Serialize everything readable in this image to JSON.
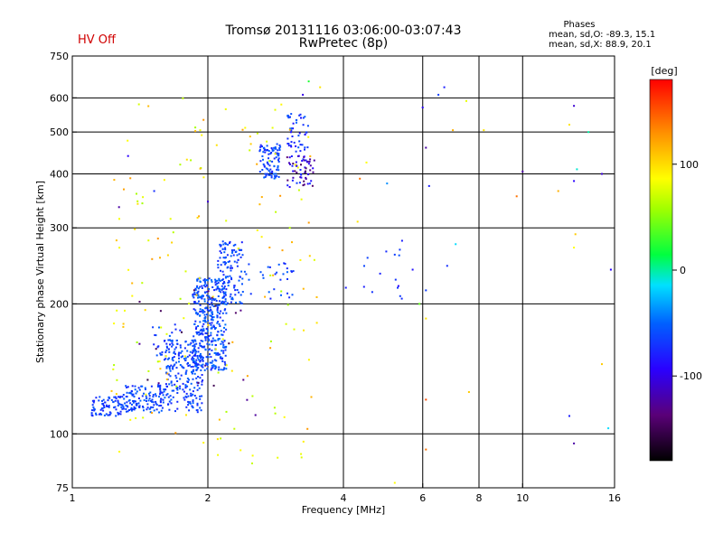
{
  "header": {
    "title_line1": "Tromsø 20131116 03:06:00-03:07:43",
    "title_line2": "RwPretec (8p)",
    "hv_status": "HV Off"
  },
  "phases": {
    "title": "Phases",
    "o_line": "mean, sd,O: -89.3, 15.1",
    "x_line": "mean, sd,X:  88.9, 20.1"
  },
  "colorbar": {
    "unit": "[deg]",
    "min": -180,
    "max": 180,
    "ticks": [
      {
        "v": 100,
        "label": "100"
      },
      {
        "v": 0,
        "label": "0"
      },
      {
        "v": -100,
        "label": "-100"
      }
    ]
  },
  "chart_data": {
    "type": "scatter",
    "title": "Tromsø 20131116 03:06:00-03:07:43",
    "subtitle": "RwPretec (8p)",
    "xlabel": "Frequency [MHz]",
    "ylabel": "Stationary phase Virtual Height [km]",
    "xscale": "log",
    "yscale": "log",
    "xlim": [
      1,
      16
    ],
    "ylim": [
      75,
      750
    ],
    "xticks": [
      1,
      2,
      4,
      6,
      8,
      10,
      16
    ],
    "xtick_labels": [
      "1",
      "2",
      "4",
      "6",
      "8",
      "10",
      "16"
    ],
    "yticks": [
      75,
      100,
      200,
      300,
      400,
      500,
      600,
      750
    ],
    "ytick_labels": [
      "75",
      "100",
      "200",
      "300",
      "400",
      "500",
      "600",
      "750"
    ],
    "x_gridlines": [
      2,
      4,
      6,
      8,
      10
    ],
    "y_gridlines": [
      100,
      200,
      300,
      400,
      500,
      600
    ],
    "grid": true,
    "color_encoding": "phase [deg]",
    "clusters": [
      {
        "x": [
          1.1,
          1.3
        ],
        "y": [
          110,
          122
        ],
        "phase": [
          -100,
          -80
        ],
        "n": 80,
        "seed": 1
      },
      {
        "x": [
          1.3,
          1.6
        ],
        "y": [
          112,
          130
        ],
        "phase": [
          -100,
          -75
        ],
        "n": 130,
        "seed": 2
      },
      {
        "x": [
          1.6,
          1.95
        ],
        "y": [
          112,
          165
        ],
        "phase": [
          -100,
          -75
        ],
        "n": 230,
        "seed": 3
      },
      {
        "x": [
          1.5,
          1.75
        ],
        "y": [
          150,
          180
        ],
        "phase": [
          -100,
          -75
        ],
        "n": 30,
        "seed": 4
      },
      {
        "x": [
          1.85,
          2.2
        ],
        "y": [
          140,
          230
        ],
        "phase": [
          -100,
          -70
        ],
        "n": 380,
        "seed": 5
      },
      {
        "x": [
          2.1,
          2.4
        ],
        "y": [
          200,
          280
        ],
        "phase": [
          -100,
          -75
        ],
        "n": 120,
        "seed": 6
      },
      {
        "x": [
          2.6,
          2.9
        ],
        "y": [
          390,
          470
        ],
        "phase": [
          -100,
          -75
        ],
        "n": 90,
        "seed": 7
      },
      {
        "x": [
          3.0,
          3.45
        ],
        "y": [
          370,
          440
        ],
        "phase": [
          -150,
          -90
        ],
        "n": 60,
        "seed": 8
      },
      {
        "x": [
          3.0,
          3.35
        ],
        "y": [
          450,
          560
        ],
        "phase": [
          -110,
          -75
        ],
        "n": 50,
        "seed": 9
      },
      {
        "x": [
          2.4,
          3.1
        ],
        "y": [
          205,
          250
        ],
        "phase": [
          -100,
          -75
        ],
        "n": 30,
        "seed": 10
      },
      {
        "x": [
          4.4,
          5.4
        ],
        "y": [
          205,
          280
        ],
        "phase": [
          -100,
          -80
        ],
        "n": 12,
        "seed": 11
      },
      {
        "x": [
          1.2,
          3.5
        ],
        "y": [
          85,
          600
        ],
        "phase": [
          60,
          140
        ],
        "n": 160,
        "seed": 12
      },
      {
        "x": [
          1.4,
          2.6
        ],
        "y": [
          110,
          220
        ],
        "phase": [
          -160,
          -130
        ],
        "n": 20,
        "seed": 13
      }
    ],
    "points": [
      {
        "x": 1.33,
        "y": 440,
        "phase": -110
      },
      {
        "x": 1.27,
        "y": 335,
        "phase": -130
      },
      {
        "x": 1.52,
        "y": 365,
        "phase": -95
      },
      {
        "x": 2.0,
        "y": 345,
        "phase": -120
      },
      {
        "x": 3.25,
        "y": 610,
        "phase": -115
      },
      {
        "x": 3.35,
        "y": 655,
        "phase": 20
      },
      {
        "x": 3.55,
        "y": 635,
        "phase": 110
      },
      {
        "x": 6.5,
        "y": 610,
        "phase": -90
      },
      {
        "x": 6.7,
        "y": 635,
        "phase": -100
      },
      {
        "x": 6.0,
        "y": 570,
        "phase": -110
      },
      {
        "x": 6.1,
        "y": 460,
        "phase": -130
      },
      {
        "x": 7.5,
        "y": 590,
        "phase": 90
      },
      {
        "x": 7.0,
        "y": 505,
        "phase": 130
      },
      {
        "x": 8.2,
        "y": 505,
        "phase": 110
      },
      {
        "x": 10.0,
        "y": 405,
        "phase": -130
      },
      {
        "x": 9.7,
        "y": 355,
        "phase": 150
      },
      {
        "x": 6.2,
        "y": 375,
        "phase": -100
      },
      {
        "x": 4.35,
        "y": 390,
        "phase": 150
      },
      {
        "x": 4.5,
        "y": 425,
        "phase": 100
      },
      {
        "x": 5.0,
        "y": 380,
        "phase": -60
      },
      {
        "x": 4.3,
        "y": 310,
        "phase": 110
      },
      {
        "x": 5.4,
        "y": 280,
        "phase": -100
      },
      {
        "x": 5.2,
        "y": 260,
        "phase": -90
      },
      {
        "x": 5.7,
        "y": 240,
        "phase": -105
      },
      {
        "x": 6.8,
        "y": 245,
        "phase": -95
      },
      {
        "x": 7.1,
        "y": 275,
        "phase": -30
      },
      {
        "x": 6.1,
        "y": 215,
        "phase": -90
      },
      {
        "x": 5.3,
        "y": 220,
        "phase": -110
      },
      {
        "x": 4.05,
        "y": 218,
        "phase": -100
      },
      {
        "x": 5.9,
        "y": 200,
        "phase": 40
      },
      {
        "x": 6.1,
        "y": 185,
        "phase": 110
      },
      {
        "x": 7.6,
        "y": 125,
        "phase": 120
      },
      {
        "x": 6.1,
        "y": 120,
        "phase": 160
      },
      {
        "x": 6.1,
        "y": 92,
        "phase": 150
      },
      {
        "x": 5.2,
        "y": 77,
        "phase": 100
      },
      {
        "x": 13.0,
        "y": 575,
        "phase": -120
      },
      {
        "x": 12.7,
        "y": 520,
        "phase": 110
      },
      {
        "x": 14.0,
        "y": 500,
        "phase": -10
      },
      {
        "x": 13.0,
        "y": 385,
        "phase": -110
      },
      {
        "x": 13.2,
        "y": 410,
        "phase": -20
      },
      {
        "x": 15.0,
        "y": 400,
        "phase": -120
      },
      {
        "x": 12.0,
        "y": 365,
        "phase": 130
      },
      {
        "x": 13.1,
        "y": 290,
        "phase": 120
      },
      {
        "x": 13.0,
        "y": 270,
        "phase": 100
      },
      {
        "x": 15.7,
        "y": 240,
        "phase": -110
      },
      {
        "x": 15.0,
        "y": 145,
        "phase": 120
      },
      {
        "x": 12.7,
        "y": 110,
        "phase": -100
      },
      {
        "x": 15.5,
        "y": 103,
        "phase": -30
      },
      {
        "x": 13.0,
        "y": 95,
        "phase": -130
      }
    ]
  }
}
